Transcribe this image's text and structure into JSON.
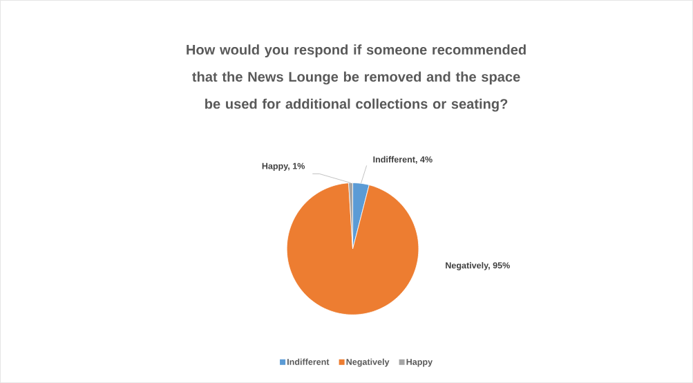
{
  "chart_data": {
    "type": "pie",
    "title": "How would you respond if someone recommended that the News Lounge be removed and the space be used for additional collections or seating?",
    "categories": [
      "Indifferent",
      "Negatively",
      "Happy"
    ],
    "values": [
      4,
      95,
      1
    ],
    "value_labels": [
      "Indifferent, 4%",
      "Negatively, 95%",
      "Happy, 1%"
    ],
    "colors": [
      "#5b9bd5",
      "#ed7d31",
      "#a5a5a5"
    ],
    "legend": "bottom"
  }
}
